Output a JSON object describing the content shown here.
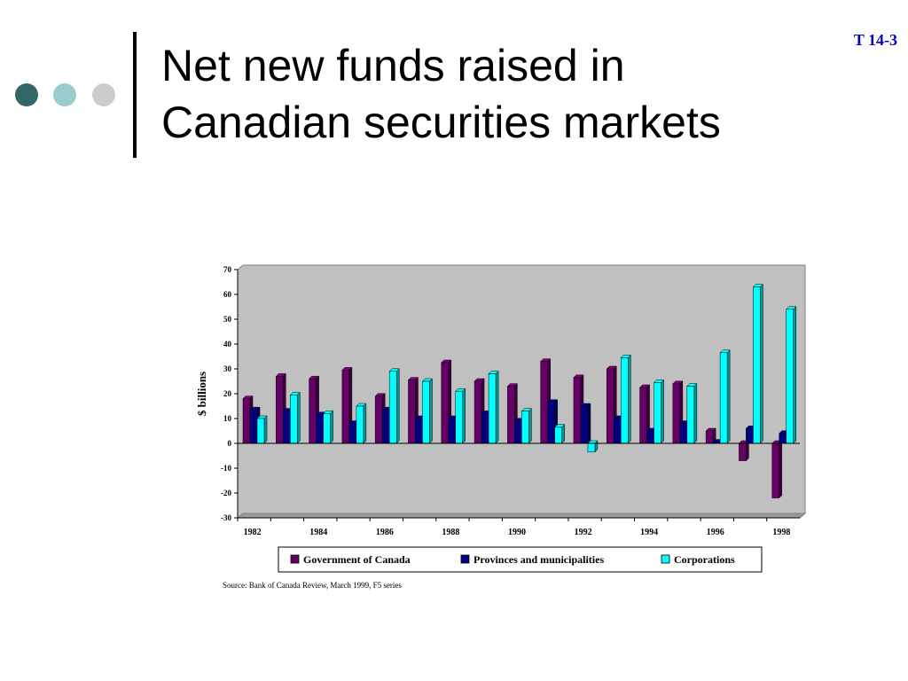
{
  "slide": {
    "title": "Net new funds raised in\nCanadian securities markets",
    "number": "T 14-3",
    "source": "Source: Bank of Canada Review, March 1999, F5 series"
  },
  "colors": {
    "dot1": "#336666",
    "dot2": "#99cccc",
    "dot3": "#cccccc",
    "plot_background": "#c0c0c0"
  },
  "chart_data": {
    "type": "bar",
    "title": "",
    "xlabel": "",
    "ylabel": "$ billions",
    "ylim": [
      -30,
      70
    ],
    "yticks": [
      70,
      60,
      50,
      40,
      30,
      20,
      10,
      0,
      -10,
      -20,
      -30
    ],
    "categories": [
      "1982",
      "1983",
      "1984",
      "1985",
      "1986",
      "1987",
      "1988",
      "1989",
      "1990",
      "1991",
      "1992",
      "1993",
      "1994",
      "1995",
      "1996",
      "1997",
      "1998"
    ],
    "xtick_labels": [
      "1982",
      "1984",
      "1986",
      "1988",
      "1990",
      "1992",
      "1994",
      "1996",
      "1998"
    ],
    "grid": false,
    "legend_position": "bottom",
    "series": [
      {
        "name": "Government of Canada",
        "color": "#660066",
        "values": [
          18,
          27,
          26,
          29.5,
          19,
          25.5,
          32.5,
          25,
          23,
          33,
          26.5,
          30,
          22.5,
          24,
          5,
          -7,
          -22
        ]
      },
      {
        "name": "Provinces and municipalities",
        "color": "#000080",
        "values": [
          13.5,
          13,
          11.5,
          8,
          13.5,
          10,
          10,
          12,
          9,
          16.5,
          15,
          10,
          5,
          8,
          0.5,
          6,
          4
        ]
      },
      {
        "name": "Corporations",
        "color": "#00ffff",
        "values": [
          10,
          19.5,
          12,
          15,
          29,
          25,
          21,
          28,
          13,
          6.5,
          -3.5,
          34.5,
          24.5,
          23,
          36.5,
          63,
          54
        ]
      }
    ]
  }
}
